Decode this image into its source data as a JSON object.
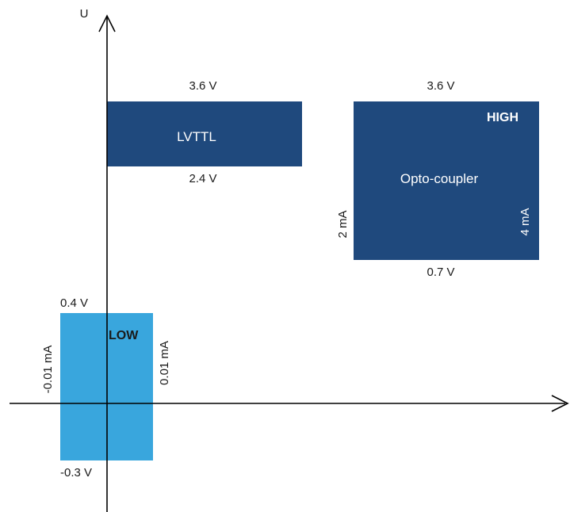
{
  "colors": {
    "dark_blue": "#1f497d",
    "light_blue": "#39a6dd",
    "axis": "#000000"
  },
  "axis": {
    "y_label": "U"
  },
  "lvttl_box": {
    "label": "LVTTL",
    "top_voltage": "3.6 V",
    "bottom_voltage": "2.4 V"
  },
  "opto_box": {
    "label": "Opto-coupler",
    "state": "HIGH",
    "top_voltage": "3.6 V",
    "bottom_voltage": "0.7 V",
    "left_current": "2 mA",
    "right_current": "4 mA"
  },
  "low_box": {
    "state": "LOW",
    "top_voltage": "0.4 V",
    "bottom_voltage": "-0.3 V",
    "left_current": "-0.01 mA",
    "right_current": "0.01 mA"
  }
}
